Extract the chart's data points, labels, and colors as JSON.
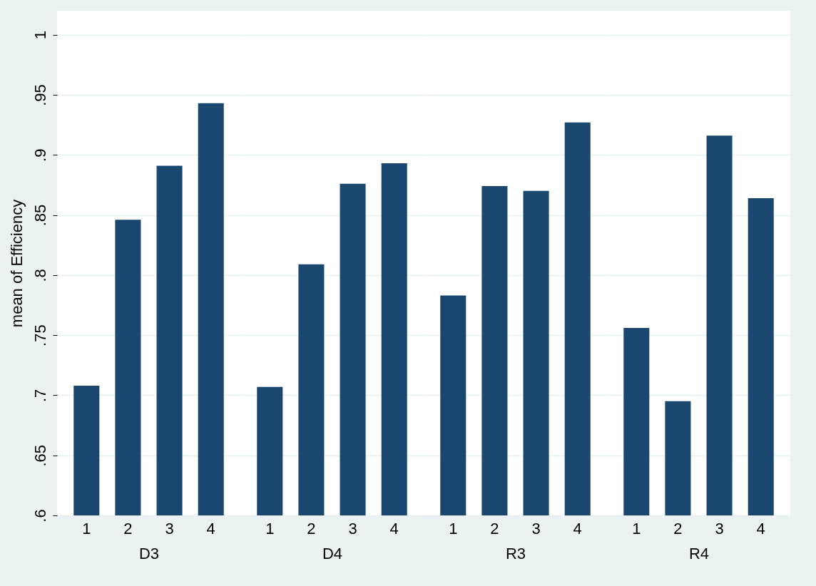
{
  "chart_data": [
    {
      "type": "bar",
      "xlabel": "D3",
      "ylabel": "mean of Efficiency",
      "categories": [
        "1",
        "2",
        "3",
        "4"
      ],
      "values": [
        0.708,
        0.846,
        0.891,
        0.943
      ],
      "color": "#1a476f",
      "ylim": [
        0.6,
        1.02
      ],
      "yticks": [
        {
          "value": 0.6,
          "label": ".6"
        },
        {
          "value": 0.65,
          "label": ".65"
        },
        {
          "value": 0.7,
          "label": ".7"
        },
        {
          "value": 0.75,
          "label": ".75"
        },
        {
          "value": 0.8,
          "label": ".8"
        },
        {
          "value": 0.85,
          "label": ".85"
        },
        {
          "value": 0.9,
          "label": ".9"
        },
        {
          "value": 0.95,
          "label": ".95"
        },
        {
          "value": 1,
          "label": "1"
        }
      ],
      "grid": "y"
    },
    {
      "type": "bar",
      "xlabel": "D4",
      "categories": [
        "1",
        "2",
        "3",
        "4"
      ],
      "values": [
        0.707,
        0.809,
        0.876,
        0.893
      ],
      "color": "#1a476f",
      "ylim": [
        0.6,
        1.02
      ],
      "yticks": [
        0.6,
        0.65,
        0.7,
        0.75,
        0.8,
        0.85,
        0.9,
        0.95,
        1
      ],
      "grid": "y",
      "tick_labels": "x"
    },
    {
      "type": "bar",
      "xlabel": "R3",
      "categories": [
        "1",
        "2",
        "3",
        "4"
      ],
      "values": [
        0.783,
        0.874,
        0.87,
        0.927
      ],
      "color": "#1a476f",
      "ylim": [
        0.6,
        1.02
      ],
      "yticks": [
        0.6,
        0.65,
        0.7,
        0.75,
        0.8,
        0.85,
        0.9,
        0.95,
        1
      ],
      "grid": "y",
      "tick_labels": "x"
    },
    {
      "type": "bar",
      "xlabel": "R4",
      "categories": [
        "1",
        "2",
        "3",
        "4"
      ],
      "values": [
        0.756,
        0.695,
        0.916,
        0.864
      ],
      "color": "#1a476f",
      "ylim": [
        0.6,
        1.02
      ],
      "yticks": [
        0.6,
        0.65,
        0.7,
        0.75,
        0.8,
        0.85,
        0.9,
        0.95,
        1
      ],
      "grid": "y",
      "tick_labels": "x"
    }
  ]
}
